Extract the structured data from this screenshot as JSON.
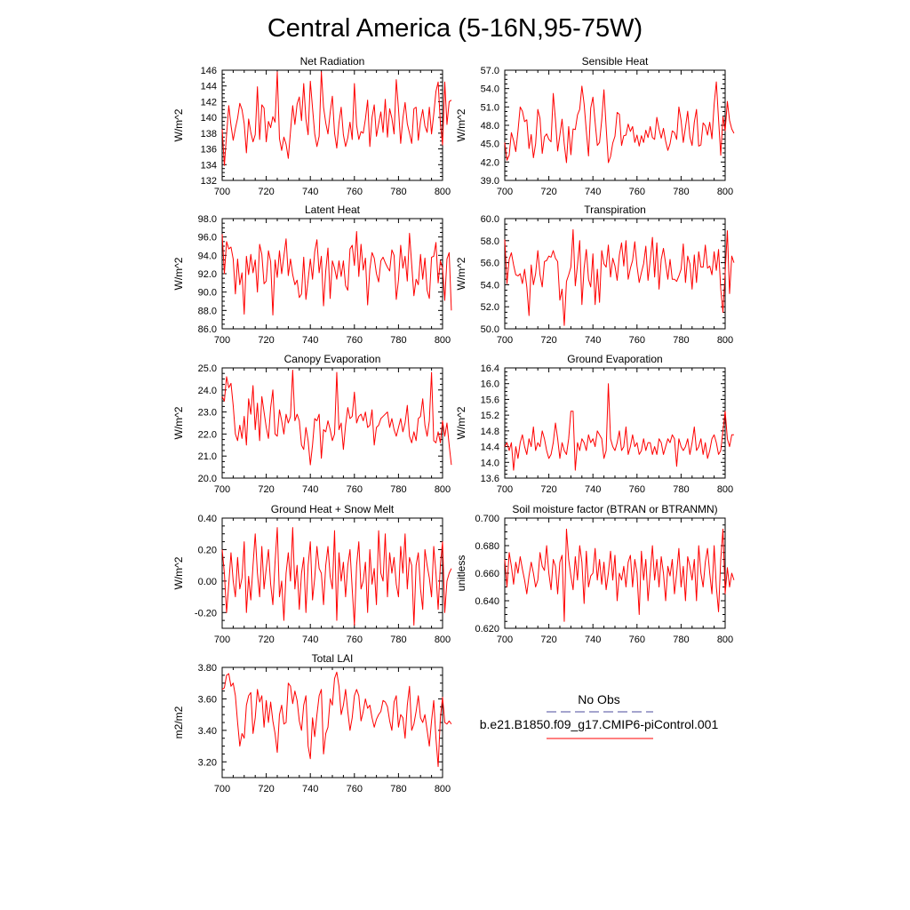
{
  "figure": {
    "title": "Central America (5-16N,95-75W)",
    "legend": {
      "obs_label": "No Obs",
      "model_label": "b.e21.B1850.f09_g17.CMIP6-piControl.001",
      "obs_color": "#4b4b9e",
      "model_color": "#ff0000"
    }
  },
  "chart_data": [
    {
      "type": "line",
      "title": "Net Radiation",
      "ylabel": "W/m^2",
      "xlim": [
        700,
        800
      ],
      "ylim": [
        132,
        146
      ],
      "xticks": [
        "700",
        "720",
        "740",
        "760",
        "780",
        "800"
      ],
      "yticks": [
        "132",
        "134",
        "136",
        "138",
        "140",
        "142",
        "144",
        "146"
      ],
      "x_start": 700,
      "values": [
        138.5,
        133.9,
        137.8,
        141.5,
        139.0,
        137.1,
        138.6,
        139.9,
        141.8,
        141.0,
        139.2,
        135.5,
        139.8,
        138.1,
        136.9,
        137.8,
        143.9,
        137.2,
        141.6,
        141.2,
        136.9,
        139.5,
        138.7,
        140.1,
        139.4,
        145.8,
        137.3,
        135.8,
        137.5,
        136.6,
        134.8,
        138.2,
        141.5,
        139.1,
        141.7,
        142.6,
        139.6,
        144.3,
        139.8,
        137.8,
        144.6,
        141.2,
        137.9,
        136.3,
        137.6,
        145.8,
        141.3,
        139.3,
        137.9,
        140.6,
        142.7,
        138.0,
        136.1,
        139.3,
        141.3,
        137.8,
        136.3,
        137.4,
        139.4,
        137.2,
        144.3,
        139.0,
        137.2,
        138.2,
        138.0,
        139.8,
        142.2,
        136.3,
        140.0,
        141.6,
        137.6,
        139.2,
        140.7,
        138.1,
        142.3,
        137.5,
        141.1,
        139.9,
        137.9,
        144.8,
        141.1,
        136.7,
        139.9,
        141.9,
        139.2,
        138.0,
        136.7,
        141.1,
        141.3,
        137.1,
        139.5,
        141.0,
        138.9,
        138.1,
        141.3,
        137.9,
        140.4,
        143.3,
        144.5,
        139.3,
        136.5,
        144.5,
        139.1,
        142.0,
        142.2
      ]
    },
    {
      "type": "line",
      "title": "Sensible Heat",
      "ylabel": "W/m^2",
      "xlim": [
        700,
        800
      ],
      "ylim": [
        39.0,
        57.0
      ],
      "xticks": [
        "700",
        "720",
        "740",
        "760",
        "780",
        "800"
      ],
      "yticks": [
        "39.0",
        "42.0",
        "45.0",
        "48.0",
        "51.0",
        "54.0",
        "57.0"
      ],
      "x_start": 700,
      "values": [
        45.2,
        42.3,
        43.1,
        46.8,
        45.5,
        43.7,
        47.1,
        51.0,
        50.3,
        48.6,
        48.9,
        44.2,
        46.5,
        42.7,
        45.0,
        50.6,
        49.1,
        43.4,
        46.1,
        46.6,
        45.7,
        45.3,
        53.2,
        48.9,
        43.8,
        46.4,
        49.0,
        44.9,
        41.9,
        47.8,
        43.2,
        47.4,
        47.3,
        49.7,
        50.6,
        54.4,
        51.5,
        47.1,
        43.0,
        50.8,
        52.6,
        48.5,
        44.7,
        45.2,
        48.9,
        53.8,
        47.7,
        41.9,
        42.9,
        45.1,
        46.2,
        50.1,
        49.8,
        44.7,
        46.3,
        46.4,
        48.2,
        47.0,
        47.8,
        45.2,
        46.4,
        44.6,
        46.3,
        45.2,
        47.2,
        46.0,
        47.8,
        46.0,
        45.7,
        49.3,
        47.4,
        45.9,
        47.5,
        45.4,
        43.9,
        45.0,
        47.1,
        46.8,
        45.7,
        51.0,
        48.8,
        45.2,
        47.7,
        50.3,
        46.1,
        44.7,
        48.5,
        50.6,
        44.6,
        44.8,
        48.4,
        47.9,
        46.4,
        48.5,
        45.8,
        51.4,
        55.1,
        49.0,
        43.1,
        49.4,
        47.1,
        51.9,
        48.8,
        47.4,
        46.7
      ]
    },
    {
      "type": "line",
      "title": "Latent Heat",
      "ylabel": "W/m^2",
      "xlim": [
        700,
        800
      ],
      "ylim": [
        86.0,
        98.0
      ],
      "xticks": [
        "700",
        "720",
        "740",
        "760",
        "780",
        "800"
      ],
      "yticks": [
        "86.0",
        "88.0",
        "90.0",
        "92.0",
        "94.0",
        "96.0",
        "98.0"
      ],
      "x_start": 700,
      "values": [
        96.3,
        92.0,
        95.5,
        94.7,
        94.9,
        93.6,
        89.8,
        93.6,
        90.8,
        92.1,
        87.6,
        93.9,
        91.9,
        94.1,
        92.1,
        93.5,
        90.0,
        95.2,
        94.1,
        90.9,
        91.2,
        94.5,
        93.3,
        87.5,
        93.5,
        91.6,
        94.5,
        92.0,
        93.9,
        95.8,
        91.8,
        93.6,
        91.9,
        90.8,
        91.3,
        89.4,
        89.8,
        93.8,
        89.2,
        91.3,
        93.6,
        91.4,
        94.4,
        95.7,
        92.1,
        93.9,
        88.5,
        92.3,
        94.8,
        89.3,
        93.4,
        92.6,
        91.4,
        93.4,
        91.7,
        93.4,
        90.7,
        90.2,
        94.7,
        95.1,
        92.9,
        96.6,
        91.7,
        95.2,
        92.4,
        93.7,
        88.6,
        92.5,
        94.3,
        93.7,
        92.0,
        91.1,
        93.4,
        93.8,
        93.2,
        92.7,
        92.3,
        94.6,
        94.0,
        89.2,
        91.3,
        95.1,
        92.6,
        93.9,
        91.2,
        96.4,
        93.0,
        89.6,
        91.4,
        90.8,
        94.1,
        91.4,
        93.7,
        90.2,
        89.3,
        93.8,
        93.9,
        95.4,
        91.0,
        93.4,
        92.6,
        89.1,
        93.6,
        94.3,
        88.0
      ]
    },
    {
      "type": "line",
      "title": "Transpiration",
      "ylabel": "W/m^2",
      "xlim": [
        700,
        800
      ],
      "ylim": [
        50.0,
        60.0
      ],
      "xticks": [
        "700",
        "720",
        "740",
        "760",
        "780",
        "800"
      ],
      "yticks": [
        "50.0",
        "52.0",
        "54.0",
        "56.0",
        "58.0",
        "60.0"
      ],
      "x_start": 700,
      "values": [
        58.1,
        54.1,
        56.3,
        56.9,
        55.8,
        54.9,
        54.8,
        55.0,
        54.1,
        55.4,
        53.8,
        51.2,
        55.8,
        54.0,
        55.0,
        57.1,
        54.9,
        53.8,
        56.1,
        56.2,
        56.6,
        56.5,
        57.1,
        56.4,
        56.1,
        52.6,
        53.6,
        50.3,
        54.3,
        54.9,
        55.6,
        59.0,
        53.9,
        55.8,
        58.0,
        52.2,
        55.5,
        57.2,
        54.5,
        53.8,
        56.8,
        52.2,
        55.4,
        52.4,
        57.1,
        55.9,
        55.6,
        57.6,
        54.7,
        56.4,
        55.7,
        54.4,
        56.7,
        57.8,
        55.7,
        58.0,
        54.5,
        55.5,
        56.2,
        57.9,
        55.7,
        54.2,
        55.1,
        55.9,
        57.5,
        54.4,
        56.2,
        58.3,
        54.7,
        57.8,
        53.6,
        56.3,
        57.3,
        55.9,
        54.5,
        56.3,
        54.5,
        54.5,
        54.3,
        54.8,
        55.4,
        57.7,
        54.2,
        56.6,
        55.9,
        53.6,
        56.7,
        54.2,
        57.0,
        55.6,
        55.6,
        57.6,
        55.5,
        55.7,
        54.9,
        57.0,
        55.3,
        57.2,
        53.6,
        51.5,
        55.1,
        58.9,
        53.2,
        56.6,
        56.0
      ]
    },
    {
      "type": "line",
      "title": "Canopy Evaporation",
      "ylabel": "W/m^2",
      "xlim": [
        700,
        800
      ],
      "ylim": [
        20.0,
        25.0
      ],
      "xticks": [
        "700",
        "720",
        "740",
        "760",
        "780",
        "800"
      ],
      "yticks": [
        "20.0",
        "21.0",
        "22.0",
        "23.0",
        "24.0",
        "25.0"
      ],
      "x_start": 700,
      "values": [
        23.7,
        23.5,
        24.6,
        24.1,
        24.3,
        23.3,
        22.0,
        21.7,
        22.4,
        21.8,
        22.8,
        21.5,
        23.6,
        22.9,
        24.2,
        22.2,
        23.4,
        21.7,
        23.7,
        23.0,
        22.3,
        21.8,
        23.2,
        24.0,
        22.0,
        21.9,
        23.1,
        22.6,
        22.0,
        22.9,
        22.5,
        22.8,
        24.9,
        22.6,
        22.9,
        22.6,
        21.5,
        21.3,
        22.3,
        21.7,
        20.6,
        21.5,
        22.7,
        22.6,
        22.9,
        20.9,
        22.2,
        22.1,
        22.6,
        22.2,
        21.7,
        22.0,
        24.8,
        22.2,
        22.5,
        21.3,
        22.4,
        23.2,
        22.7,
        22.8,
        23.9,
        22.5,
        22.8,
        22.9,
        22.6,
        23.0,
        22.3,
        22.4,
        23.1,
        21.5,
        22.3,
        22.4,
        22.7,
        22.8,
        22.9,
        23.0,
        22.3,
        22.7,
        22.2,
        21.9,
        22.3,
        22.7,
        22.1,
        22.5,
        23.3,
        21.9,
        21.6,
        22.1,
        21.7,
        22.7,
        22.8,
        23.6,
        22.4,
        21.9,
        22.6,
        24.8,
        21.7,
        21.6,
        22.1,
        21.6,
        22.6,
        21.9,
        22.5,
        21.5,
        20.6
      ]
    },
    {
      "type": "line",
      "title": "Ground Evaporation",
      "ylabel": "W/m^2",
      "xlim": [
        700,
        800
      ],
      "ylim": [
        13.6,
        16.4
      ],
      "xticks": [
        "700",
        "720",
        "740",
        "760",
        "780",
        "800"
      ],
      "yticks": [
        "13.6",
        "14.0",
        "14.4",
        "14.8",
        "15.2",
        "15.6",
        "16.0",
        "16.4"
      ],
      "x_start": 700,
      "values": [
        14.4,
        14.5,
        14.3,
        14.5,
        13.8,
        14.4,
        14.1,
        14.5,
        14.7,
        14.4,
        14.2,
        14.6,
        14.4,
        14.9,
        14.3,
        14.5,
        14.4,
        14.8,
        14.6,
        14.3,
        14.1,
        14.2,
        14.5,
        15.0,
        14.6,
        14.1,
        14.5,
        14.3,
        14.2,
        14.6,
        15.3,
        15.3,
        13.8,
        14.5,
        14.3,
        14.6,
        14.5,
        14.3,
        14.7,
        14.5,
        14.6,
        14.4,
        14.8,
        14.7,
        14.6,
        14.1,
        14.3,
        16.0,
        14.6,
        14.4,
        14.3,
        14.5,
        14.8,
        14.3,
        14.4,
        14.9,
        14.2,
        14.4,
        14.7,
        14.4,
        14.5,
        14.2,
        14.3,
        14.6,
        14.3,
        14.5,
        14.5,
        14.2,
        14.4,
        14.2,
        14.6,
        14.5,
        14.2,
        14.4,
        14.6,
        14.5,
        14.7,
        14.6,
        13.9,
        14.6,
        14.4,
        14.3,
        14.4,
        14.6,
        14.2,
        14.5,
        14.9,
        14.3,
        14.4,
        14.6,
        14.2,
        14.5,
        14.1,
        14.3,
        14.6,
        14.7,
        14.5,
        14.2,
        14.3,
        14.8,
        15.3,
        14.6,
        14.4,
        14.7,
        14.7
      ]
    },
    {
      "type": "line",
      "title": "Ground Heat + Snow Melt",
      "ylabel": "W/m^2",
      "xlim": [
        700,
        800
      ],
      "ylim": [
        -0.3,
        0.4
      ],
      "xticks": [
        "700",
        "720",
        "740",
        "760",
        "780",
        "800"
      ],
      "yticks": [
        "-0.20",
        "0.00",
        "0.20",
        "0.40"
      ],
      "x_start": 700,
      "values": [
        0.2,
        0.05,
        -0.2,
        -0.02,
        0.18,
        0.0,
        -0.1,
        0.15,
        -0.05,
        0.02,
        0.25,
        -0.2,
        0.03,
        -0.12,
        0.1,
        0.3,
        0.05,
        -0.1,
        0.22,
        -0.05,
        0.08,
        0.2,
        -0.02,
        -0.15,
        0.12,
        0.34,
        -0.1,
        0.0,
        -0.25,
        0.05,
        0.18,
        0.0,
        0.34,
        -0.05,
        0.1,
        -0.18,
        0.05,
        0.15,
        -0.2,
        0.1,
        0.25,
        -0.12,
        0.02,
        0.22,
        0.08,
        0.05,
        -0.15,
        0.1,
        0.22,
        0.03,
        -0.05,
        0.32,
        -0.25,
        0.18,
        0.0,
        0.12,
        -0.1,
        0.1,
        0.2,
        -0.05,
        -0.28,
        0.1,
        0.25,
        -0.05,
        0.0,
        0.12,
        -0.2,
        0.2,
        -0.02,
        0.08,
        -0.15,
        0.32,
        0.05,
        0.0,
        0.3,
        -0.1,
        0.18,
        0.05,
        0.15,
        -0.02,
        -0.1,
        0.22,
        0.05,
        0.3,
        -0.05,
        0.15,
        0.1,
        -0.28,
        0.1,
        0.18,
        -0.05,
        -0.18,
        0.2,
        0.1,
        0.02,
        -0.1,
        0.22,
        0.05,
        -0.18,
        0.1,
        0.25,
        -0.2,
        0.0,
        0.05,
        0.08
      ]
    },
    {
      "type": "line",
      "title": "Soil moisture factor (BTRAN or BTRANMN)",
      "ylabel": "unitless",
      "xlim": [
        700,
        800
      ],
      "ylim": [
        0.62,
        0.7
      ],
      "xticks": [
        "700",
        "720",
        "740",
        "760",
        "780",
        "800"
      ],
      "yticks": [
        "0.620",
        "0.640",
        "0.660",
        "0.680",
        "0.700"
      ],
      "x_start": 700,
      "values": [
        0.67,
        0.65,
        0.675,
        0.665,
        0.652,
        0.668,
        0.66,
        0.672,
        0.663,
        0.655,
        0.645,
        0.658,
        0.668,
        0.66,
        0.65,
        0.655,
        0.675,
        0.665,
        0.662,
        0.68,
        0.66,
        0.648,
        0.67,
        0.665,
        0.645,
        0.668,
        0.673,
        0.625,
        0.692,
        0.67,
        0.658,
        0.648,
        0.672,
        0.655,
        0.68,
        0.668,
        0.638,
        0.676,
        0.65,
        0.658,
        0.66,
        0.678,
        0.655,
        0.67,
        0.652,
        0.668,
        0.648,
        0.66,
        0.676,
        0.655,
        0.673,
        0.64,
        0.66,
        0.655,
        0.665,
        0.65,
        0.668,
        0.673,
        0.65,
        0.67,
        0.66,
        0.63,
        0.676,
        0.655,
        0.67,
        0.64,
        0.66,
        0.68,
        0.655,
        0.67,
        0.65,
        0.672,
        0.66,
        0.64,
        0.665,
        0.658,
        0.67,
        0.645,
        0.66,
        0.678,
        0.65,
        0.665,
        0.64,
        0.672,
        0.665,
        0.655,
        0.67,
        0.64,
        0.68,
        0.66,
        0.65,
        0.668,
        0.678,
        0.66,
        0.645,
        0.68,
        0.65,
        0.632,
        0.67,
        0.692,
        0.645,
        0.664,
        0.65,
        0.66,
        0.655
      ]
    },
    {
      "type": "line",
      "title": "Total LAI",
      "ylabel": "m2/m2",
      "xlim": [
        700,
        800
      ],
      "ylim": [
        3.1,
        3.8
      ],
      "xticks": [
        "700",
        "720",
        "740",
        "760",
        "780",
        "800"
      ],
      "yticks": [
        "3.20",
        "3.40",
        "3.60",
        "3.80"
      ],
      "x_start": 700,
      "values": [
        3.66,
        3.67,
        3.75,
        3.76,
        3.68,
        3.7,
        3.62,
        3.45,
        3.3,
        3.38,
        3.35,
        3.56,
        3.62,
        3.64,
        3.38,
        3.48,
        3.66,
        3.58,
        3.62,
        3.42,
        3.59,
        3.45,
        3.58,
        3.46,
        3.38,
        3.26,
        3.5,
        3.56,
        3.44,
        3.45,
        3.7,
        3.68,
        3.57,
        3.65,
        3.59,
        3.46,
        3.4,
        3.56,
        3.62,
        3.3,
        3.22,
        3.48,
        3.36,
        3.5,
        3.62,
        3.66,
        3.25,
        3.38,
        3.42,
        3.6,
        3.56,
        3.73,
        3.77,
        3.68,
        3.5,
        3.56,
        3.66,
        3.52,
        3.4,
        3.48,
        3.62,
        3.66,
        3.62,
        3.46,
        3.52,
        3.6,
        3.54,
        3.56,
        3.48,
        3.42,
        3.47,
        3.5,
        3.52,
        3.59,
        3.58,
        3.55,
        3.46,
        3.4,
        3.58,
        3.62,
        3.42,
        3.5,
        3.48,
        3.35,
        3.56,
        3.68,
        3.4,
        3.44,
        3.52,
        3.62,
        3.48,
        3.45,
        3.5,
        3.4,
        3.3,
        3.46,
        3.59,
        3.35,
        3.17,
        3.48,
        3.61,
        3.45,
        3.44,
        3.46,
        3.44
      ]
    }
  ]
}
